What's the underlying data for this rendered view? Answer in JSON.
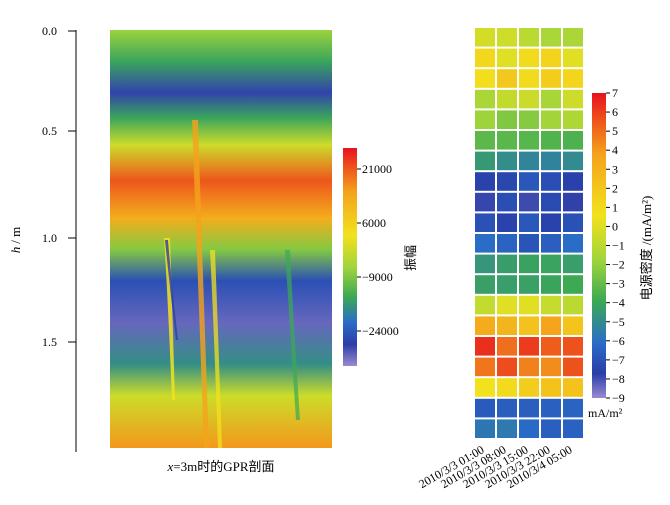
{
  "chart_data": [
    {
      "type": "heatmap",
      "title": "",
      "caption": {
        "prefix": "x",
        "suffix": "=3m时的GPR剖面"
      },
      "ylabel": {
        "var": "h",
        "unit": "/ m"
      },
      "ylim": [
        0.0,
        2.0
      ],
      "ytick_values": [
        0.0,
        0.5,
        1.0,
        1.5
      ],
      "ytick_labels": [
        "0.0",
        "0.5",
        "1.0",
        "1.5"
      ],
      "colorbar": {
        "label": "振幅",
        "range": [
          -30000,
          30000
        ],
        "tick_values": [
          21000,
          6000,
          -9000,
          -24000
        ],
        "tick_labels": [
          "21000",
          "6000",
          "−9000",
          "−24000"
        ],
        "colors": [
          "#e8131c",
          "#f4a21c",
          "#f2e21c",
          "#9ed43c",
          "#3caa52",
          "#2a6cc8",
          "#2a3ea8",
          "#9a8ad0"
        ]
      },
      "depth_profile": [
        {
          "h": 0.0,
          "amplitude": 4000
        },
        {
          "h": 0.15,
          "amplitude": -5000
        },
        {
          "h": 0.3,
          "amplitude": -22000
        },
        {
          "h": 0.42,
          "amplitude": -5000
        },
        {
          "h": 0.55,
          "amplitude": 9000
        },
        {
          "h": 0.72,
          "amplitude": 26000
        },
        {
          "h": 0.9,
          "amplitude": 20000
        },
        {
          "h": 1.05,
          "amplitude": 2000
        },
        {
          "h": 1.2,
          "amplitude": -18000
        },
        {
          "h": 1.4,
          "amplitude": -26000
        },
        {
          "h": 1.6,
          "amplitude": -8000
        },
        {
          "h": 1.75,
          "amplitude": 9000
        },
        {
          "h": 2.0,
          "amplitude": 22000
        }
      ]
    },
    {
      "type": "heatmap",
      "title": "",
      "x_tick_labels": [
        "2010/3/3 01:00",
        "2010/3/3 08:00",
        "2010/3/3 15:00",
        "2010/3/3 22:00",
        "2010/3/4 05:00"
      ],
      "colorbar": {
        "label": "电源密度 /(mA/m²)",
        "unit": "mA/m²",
        "range": [
          -9,
          7
        ],
        "tick_values": [
          7,
          6,
          5,
          4,
          3,
          2,
          1,
          0,
          -1,
          -2,
          -3,
          -4,
          -5,
          -6,
          -7,
          -8,
          -9
        ],
        "tick_labels": [
          "7",
          "6",
          "5",
          "4",
          "3",
          "2",
          "1",
          "0",
          "−1",
          "−2",
          "−3",
          "−4",
          "−5",
          "−6",
          "−7",
          "−8",
          "−9"
        ]
      },
      "rows": 20,
      "columns": 5,
      "row_values": [
        1,
        2.5,
        3,
        1,
        0,
        -2,
        -3,
        -6,
        -6.5,
        -6,
        -5,
        -3,
        -2,
        1.5,
        4,
        6,
        5.5,
        3,
        -5,
        -4.5
      ]
    }
  ]
}
